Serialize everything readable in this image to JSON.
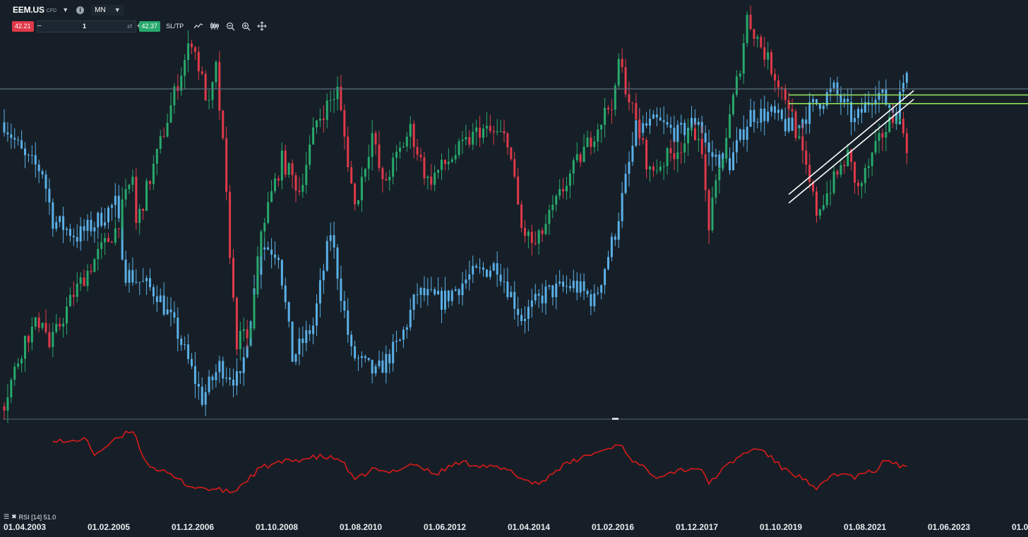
{
  "header": {
    "symbol": "EEM.US",
    "symbol_type": "CFD",
    "info_icon": "info-icon",
    "timeframe": "MN"
  },
  "trade_bar": {
    "sell_price": "42.21",
    "buy_price": "42.37",
    "volume": "1",
    "sltp_label": "SL/TP",
    "minus_label": "−",
    "plus_label": "+"
  },
  "tools": [
    "line-chart-icon",
    "candlestick-icon",
    "zoom-out-icon",
    "zoom-in-icon",
    "move-crosshair-icon"
  ],
  "indicator": {
    "legend": "RSI [14] 51.0",
    "color": "#d81a1a"
  },
  "colors": {
    "background": "#161f27",
    "bull": "#27a96c",
    "bear": "#e0394a",
    "overlay": "#5ab0e8",
    "level_line": "#8fe05a",
    "trend_line": "#ffffff"
  },
  "chart_data": {
    "type": "candlestick",
    "symbol": "EEM.US",
    "timeframe": "MN",
    "x_labels": [
      "01.04.2003",
      "01.02.2005",
      "01.12.2006",
      "01.10.2008",
      "01.08.2010",
      "01.06.2012",
      "01.04.2014",
      "01.02.2016",
      "01.12.2017",
      "01.10.2019",
      "01.08.2021",
      "01.06.2023",
      "01.0"
    ],
    "main_series": {
      "name": "EEM.US",
      "close_path": [
        [
          "2003-04",
          12.5
        ],
        [
          "2003-10",
          19.8
        ],
        [
          "2004-03",
          22.3
        ],
        [
          "2004-05",
          18.8
        ],
        [
          "2004-12",
          25.0
        ],
        [
          "2005-07",
          29.6
        ],
        [
          "2005-12",
          32.4
        ],
        [
          "2006-05",
          38.6
        ],
        [
          "2006-06",
          33.0
        ],
        [
          "2006-12",
          41.0
        ],
        [
          "2007-06",
          49.5
        ],
        [
          "2007-10",
          54.5
        ],
        [
          "2008-03",
          46.5
        ],
        [
          "2008-05",
          51.0
        ],
        [
          "2008-07",
          42.0
        ],
        [
          "2008-10",
          24.0
        ],
        [
          "2008-11",
          19.5
        ],
        [
          "2009-03",
          20.5
        ],
        [
          "2009-06",
          32.5
        ],
        [
          "2009-12",
          40.5
        ],
        [
          "2010-05",
          37.0
        ],
        [
          "2010-10",
          45.0
        ],
        [
          "2011-04",
          48.5
        ],
        [
          "2011-09",
          35.0
        ],
        [
          "2012-02",
          43.5
        ],
        [
          "2012-05",
          37.5
        ],
        [
          "2013-01",
          44.0
        ],
        [
          "2013-06",
          38.0
        ],
        [
          "2014-09",
          44.0
        ],
        [
          "2015-05",
          43.0
        ],
        [
          "2015-09",
          32.5
        ],
        [
          "2016-01",
          30.5
        ],
        [
          "2016-10",
          38.0
        ],
        [
          "2017-12",
          48.0
        ],
        [
          "2018-01",
          52.0
        ],
        [
          "2018-10",
          39.0
        ],
        [
          "2019-12",
          44.0
        ],
        [
          "2020-03",
          33.0
        ],
        [
          "2020-12",
          51.5
        ],
        [
          "2021-02",
          57.0
        ],
        [
          "2022-02",
          47.0
        ],
        [
          "2022-10",
          34.5
        ],
        [
          "2023-07",
          41.0
        ],
        [
          "2023-10",
          37.0
        ],
        [
          "2024-05",
          43.5
        ],
        [
          "2024-09",
          46.0
        ],
        [
          "2024-12",
          42.3
        ]
      ]
    },
    "overlay_series": {
      "name": "",
      "color": "#5ab0e8",
      "path": [
        [
          "2003-04",
          0.72
        ],
        [
          "2003-10",
          0.63
        ],
        [
          "2004-03",
          0.6
        ],
        [
          "2004-06",
          0.48
        ],
        [
          "2005-01",
          0.44
        ],
        [
          "2005-06",
          0.47
        ],
        [
          "2005-12",
          0.52
        ],
        [
          "2006-03",
          0.35
        ],
        [
          "2006-12",
          0.3
        ],
        [
          "2007-06",
          0.2
        ],
        [
          "2008-01",
          0.04
        ],
        [
          "2008-06",
          0.12
        ],
        [
          "2008-12",
          0.08
        ],
        [
          "2009-06",
          0.42
        ],
        [
          "2009-11",
          0.4
        ],
        [
          "2010-03",
          0.14
        ],
        [
          "2010-09",
          0.22
        ],
        [
          "2011-02",
          0.45
        ],
        [
          "2011-08",
          0.15
        ],
        [
          "2012-03",
          0.1
        ],
        [
          "2012-10",
          0.18
        ],
        [
          "2013-03",
          0.3
        ],
        [
          "2013-10",
          0.28
        ],
        [
          "2014-06",
          0.34
        ],
        [
          "2015-02",
          0.37
        ],
        [
          "2015-09",
          0.24
        ],
        [
          "2016-04",
          0.3
        ],
        [
          "2016-12",
          0.32
        ],
        [
          "2017-06",
          0.28
        ],
        [
          "2017-12",
          0.45
        ],
        [
          "2018-06",
          0.7
        ],
        [
          "2018-12",
          0.72
        ],
        [
          "2019-06",
          0.69
        ],
        [
          "2019-12",
          0.73
        ],
        [
          "2020-03",
          0.64
        ],
        [
          "2020-09",
          0.62
        ],
        [
          "2021-03",
          0.74
        ],
        [
          "2021-09",
          0.74
        ],
        [
          "2022-03",
          0.7
        ],
        [
          "2022-09",
          0.76
        ],
        [
          "2023-03",
          0.8
        ],
        [
          "2023-09",
          0.72
        ],
        [
          "2024-03",
          0.8
        ],
        [
          "2024-09",
          0.74
        ],
        [
          "2024-12",
          0.86
        ]
      ]
    },
    "rsi": {
      "name": "RSI [14]",
      "last": 51.0,
      "path": [
        [
          "2003-04",
          75
        ],
        [
          "2003-07",
          72
        ],
        [
          "2004-03",
          76
        ],
        [
          "2004-10",
          70
        ],
        [
          "2005-03",
          74
        ],
        [
          "2005-06",
          62
        ],
        [
          "2005-12",
          72
        ],
        [
          "2006-05",
          80
        ],
        [
          "2006-09",
          55
        ],
        [
          "2007-04",
          46
        ],
        [
          "2007-10",
          38
        ],
        [
          "2008-04",
          36
        ],
        [
          "2008-10",
          34
        ],
        [
          "2009-06",
          52
        ],
        [
          "2009-12",
          56
        ],
        [
          "2010-05",
          58
        ],
        [
          "2010-11",
          60
        ],
        [
          "2011-05",
          58
        ],
        [
          "2011-09",
          42
        ],
        [
          "2012-02",
          51
        ],
        [
          "2012-06",
          48
        ],
        [
          "2013-02",
          55
        ],
        [
          "2013-08",
          47
        ],
        [
          "2014-03",
          56
        ],
        [
          "2014-09",
          54
        ],
        [
          "2015-05",
          50
        ],
        [
          "2015-10",
          43
        ],
        [
          "2016-02",
          40
        ],
        [
          "2016-08",
          52
        ],
        [
          "2017-03",
          60
        ],
        [
          "2017-10",
          66
        ],
        [
          "2018-01",
          70
        ],
        [
          "2018-06",
          55
        ],
        [
          "2018-12",
          46
        ],
        [
          "2019-06",
          50
        ],
        [
          "2019-12",
          52
        ],
        [
          "2020-03",
          41
        ],
        [
          "2020-09",
          55
        ],
        [
          "2021-02",
          64
        ],
        [
          "2021-06",
          66
        ],
        [
          "2021-12",
          52
        ],
        [
          "2022-06",
          44
        ],
        [
          "2022-10",
          35
        ],
        [
          "2023-03",
          48
        ],
        [
          "2023-09",
          45
        ],
        [
          "2024-03",
          50
        ],
        [
          "2024-06",
          58
        ],
        [
          "2024-12",
          51
        ]
      ]
    },
    "horizontal_level": 48.0,
    "drawn_lines": [
      {
        "type": "horizontal",
        "color": "#8fe05a",
        "from": "2022-02",
        "y": 48.0
      },
      {
        "type": "horizontal",
        "color": "#8fe05a",
        "from": "2022-02",
        "y": 47.0
      },
      {
        "type": "trendline",
        "color": "#ffffff",
        "from": [
          "2022-02",
          35.5
        ],
        "to": [
          "2025-02",
          47.5
        ]
      },
      {
        "type": "trendline",
        "color": "#ffffff",
        "from": [
          "2022-02",
          36.5
        ],
        "to": [
          "2025-02",
          48.5
        ]
      }
    ],
    "grid": false,
    "legend": "none"
  }
}
